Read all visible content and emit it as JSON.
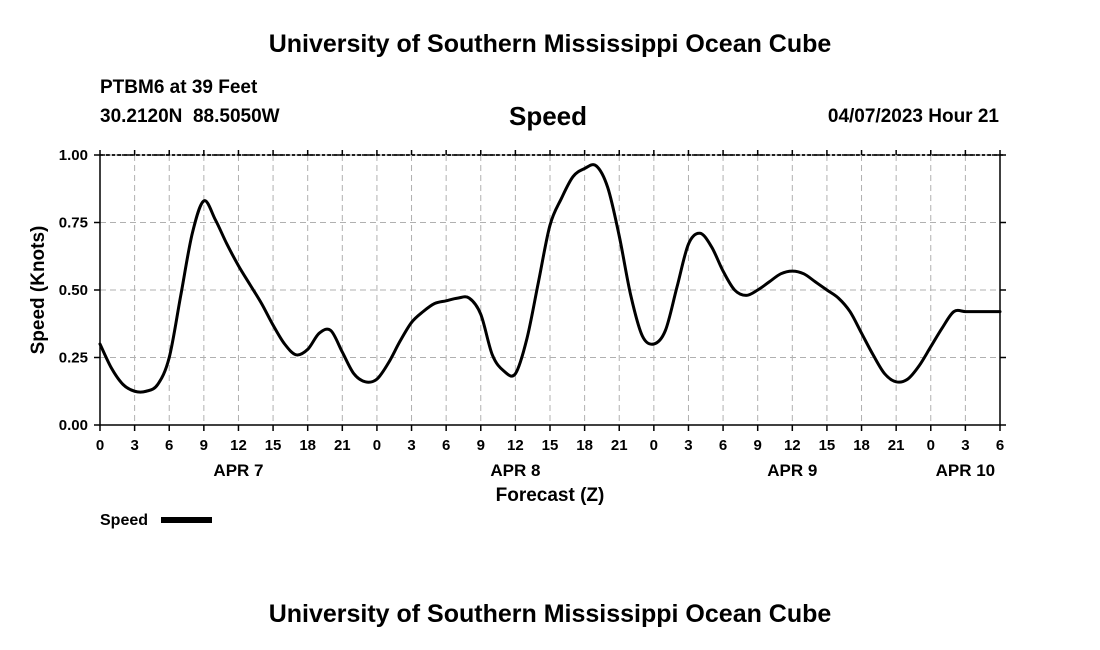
{
  "header": {
    "title": "University of Southern Mississippi Ocean Cube",
    "station": "PTBM6 at 39 Feet",
    "coords": "30.2120N  88.5050W",
    "variable": "Speed",
    "timestamp": "04/07/2023 Hour 21"
  },
  "footer": {
    "title": "University of Southern Mississippi Ocean Cube"
  },
  "chart_data": {
    "type": "line",
    "title": "Speed",
    "xlabel": "Forecast (Z)",
    "ylabel": "Speed (Knots)",
    "xlim": [
      0,
      78
    ],
    "ylim": [
      0,
      1.0
    ],
    "grid": true,
    "y_ticks": [
      0.0,
      0.25,
      0.5,
      0.75,
      1.0
    ],
    "y_tick_labels": [
      "0.00",
      "0.25",
      "0.50",
      "0.75",
      "1.00"
    ],
    "x_ticks": [
      0,
      3,
      6,
      9,
      12,
      15,
      18,
      21,
      24,
      27,
      30,
      33,
      36,
      39,
      42,
      45,
      48,
      51,
      54,
      57,
      60,
      63,
      66,
      69,
      72,
      75,
      78
    ],
    "x_tick_labels": [
      "0",
      "3",
      "6",
      "9",
      "12",
      "15",
      "18",
      "21",
      "0",
      "3",
      "6",
      "9",
      "12",
      "15",
      "18",
      "21",
      "0",
      "3",
      "6",
      "9",
      "12",
      "15",
      "18",
      "21",
      "0",
      "3",
      "6"
    ],
    "date_labels": [
      {
        "hour": 12,
        "label": "APR 7"
      },
      {
        "hour": 36,
        "label": "APR 8"
      },
      {
        "hour": 60,
        "label": "APR 9"
      },
      {
        "hour": 75,
        "label": "APR 10"
      }
    ],
    "legend": {
      "label": "Speed",
      "placement": "bottom-left"
    },
    "series": [
      {
        "name": "Speed",
        "x": [
          0,
          1,
          2,
          3,
          4,
          5,
          6,
          7,
          8,
          9,
          10,
          11,
          12,
          13,
          14,
          15,
          16,
          17,
          18,
          19,
          20,
          21,
          22,
          23,
          24,
          25,
          26,
          27,
          28,
          29,
          30,
          31,
          32,
          33,
          34,
          35,
          36,
          37,
          38,
          39,
          40,
          41,
          42,
          43,
          44,
          45,
          46,
          47,
          48,
          49,
          50,
          51,
          52,
          53,
          54,
          55,
          56,
          57,
          58,
          59,
          60,
          61,
          62,
          63,
          64,
          65,
          66,
          67,
          68,
          69,
          70,
          71,
          72,
          73,
          74,
          75,
          76,
          77,
          78
        ],
        "values": [
          0.3,
          0.21,
          0.15,
          0.125,
          0.125,
          0.15,
          0.25,
          0.48,
          0.71,
          0.83,
          0.76,
          0.67,
          0.59,
          0.52,
          0.45,
          0.37,
          0.3,
          0.26,
          0.28,
          0.34,
          0.35,
          0.27,
          0.19,
          0.16,
          0.17,
          0.23,
          0.31,
          0.38,
          0.42,
          0.45,
          0.46,
          0.47,
          0.47,
          0.41,
          0.26,
          0.2,
          0.19,
          0.32,
          0.53,
          0.74,
          0.84,
          0.92,
          0.95,
          0.96,
          0.88,
          0.7,
          0.48,
          0.33,
          0.3,
          0.35,
          0.51,
          0.67,
          0.71,
          0.66,
          0.57,
          0.5,
          0.48,
          0.5,
          0.53,
          0.56,
          0.57,
          0.56,
          0.53,
          0.5,
          0.47,
          0.42,
          0.34,
          0.26,
          0.19,
          0.16,
          0.17,
          0.22,
          0.29,
          0.36,
          0.42,
          0.42,
          0.42,
          0.42,
          0.42
        ]
      }
    ]
  }
}
